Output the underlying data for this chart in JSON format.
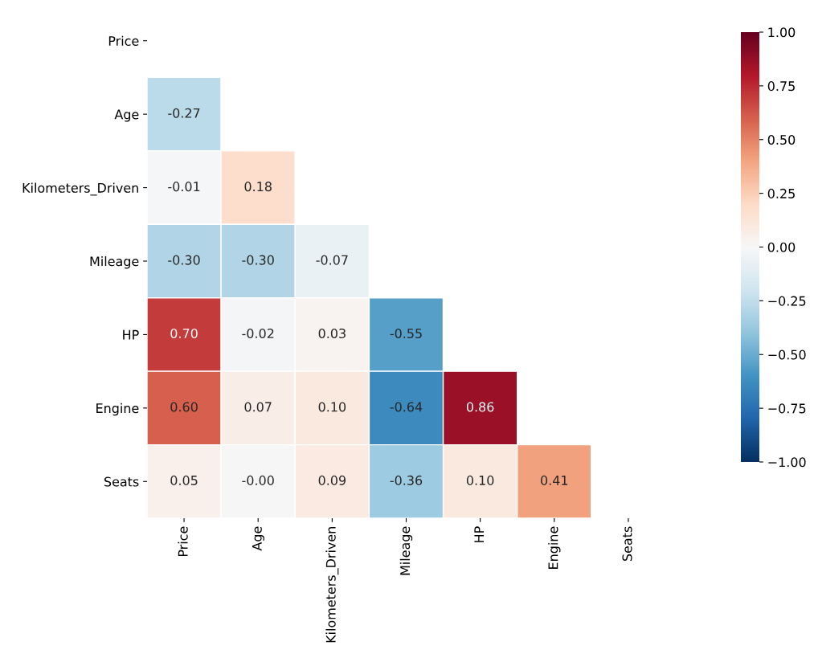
{
  "chart_data": {
    "type": "heatmap",
    "categories": [
      "Price",
      "Age",
      "Kilometers_Driven",
      "Mileage",
      "HP",
      "Engine",
      "Seats"
    ],
    "y_categories": [
      "Price",
      "Age",
      "Kilometers_Driven",
      "Mileage",
      "HP",
      "Engine",
      "Seats"
    ],
    "cells": [
      [
        null,
        null,
        null,
        null,
        null,
        null,
        null
      ],
      [
        -0.27,
        null,
        null,
        null,
        null,
        null,
        null
      ],
      [
        -0.01,
        0.18,
        null,
        null,
        null,
        null,
        null
      ],
      [
        -0.3,
        -0.3,
        -0.07,
        null,
        null,
        null,
        null
      ],
      [
        0.7,
        -0.02,
        0.03,
        -0.55,
        null,
        null,
        null
      ],
      [
        0.6,
        0.07,
        0.1,
        -0.64,
        0.86,
        null,
        null
      ],
      [
        0.05,
        -0.0,
        0.09,
        -0.36,
        0.1,
        0.41,
        null
      ]
    ],
    "cell_labels": [
      [
        null,
        null,
        null,
        null,
        null,
        null,
        null
      ],
      [
        "-0.27",
        null,
        null,
        null,
        null,
        null,
        null
      ],
      [
        "-0.01",
        "0.18",
        null,
        null,
        null,
        null,
        null
      ],
      [
        "-0.30",
        "-0.30",
        "-0.07",
        null,
        null,
        null,
        null
      ],
      [
        "0.70",
        "-0.02",
        "0.03",
        "-0.55",
        null,
        null,
        null
      ],
      [
        "0.60",
        "0.07",
        "0.10",
        "-0.64",
        "0.86",
        null,
        null
      ],
      [
        "0.05",
        "-0.00",
        "0.09",
        "-0.36",
        "0.10",
        "0.41",
        null
      ]
    ],
    "clim": [
      -1,
      1
    ],
    "cticks": [
      {
        "value": -1,
        "label": "−1.00"
      },
      {
        "value": -0.75,
        "label": "−0.75"
      },
      {
        "value": -0.5,
        "label": "−0.50"
      },
      {
        "value": -0.25,
        "label": "−0.25"
      },
      {
        "value": 0,
        "label": "0.00"
      },
      {
        "value": 0.25,
        "label": "0.25"
      },
      {
        "value": 0.5,
        "label": "0.50"
      },
      {
        "value": 0.75,
        "label": "0.75"
      },
      {
        "value": 1,
        "label": "1.00"
      }
    ]
  }
}
